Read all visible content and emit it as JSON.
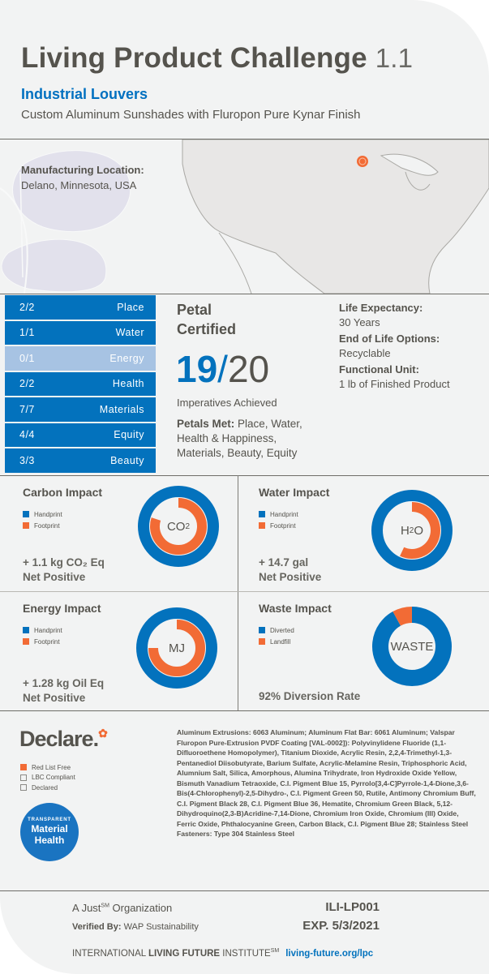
{
  "header": {
    "title": "Living Product Challenge",
    "version": "1.1",
    "product_name": "Industrial Louvers",
    "product_description": "Custom Aluminum Sunshades with Fluropon Pure Kynar Finish"
  },
  "location": {
    "label": "Manufacturing Location:",
    "value": "Delano, Minnesota, USA",
    "marker_color": "#f26b35"
  },
  "petals": [
    {
      "score": "2/2",
      "name": "Place",
      "achieved": true
    },
    {
      "score": "1/1",
      "name": "Water",
      "achieved": true
    },
    {
      "score": "0/1",
      "name": "Energy",
      "achieved": false
    },
    {
      "score": "2/2",
      "name": "Health",
      "achieved": true
    },
    {
      "score": "7/7",
      "name": "Materials",
      "achieved": true
    },
    {
      "score": "4/4",
      "name": "Equity",
      "achieved": true
    },
    {
      "score": "3/3",
      "name": "Beauty",
      "achieved": true
    }
  ],
  "certification": {
    "title": "Petal Certified",
    "achieved": "19",
    "slash": "/",
    "total": "20",
    "achieved_label": "Imperatives Achieved",
    "petals_met_label": "Petals Met:",
    "petals_met_value": " Place, Water, Health & Happiness, Materials, Beauty, Equity"
  },
  "product_info": {
    "life_expectancy_label": "Life Expectancy:",
    "life_expectancy_value": "30 Years",
    "end_of_life_label": "End of Life Options:",
    "end_of_life_value": "Recyclable",
    "functional_unit_label": "Functional Unit:",
    "functional_unit_value": "1 lb of Finished Product"
  },
  "colors": {
    "blue": "#0372bd",
    "light_blue": "#a7c3e3",
    "orange": "#f26b35",
    "text": "#55534d"
  },
  "chart_data": [
    {
      "type": "pie",
      "title": "Carbon Impact",
      "center_label": "CO",
      "center_sub": "2",
      "legend": [
        "Handprint",
        "Footprint"
      ],
      "series": [
        {
          "name": "Handprint",
          "value": 1.0
        },
        {
          "name": "Footprint",
          "value": 0.8
        }
      ],
      "result_line1": "+ 1.1 kg CO₂ Eq",
      "result_line2": "Net Positive"
    },
    {
      "type": "pie",
      "title": "Water Impact",
      "center_label": "H",
      "center_sub": "2",
      "center_suffix": "O",
      "legend": [
        "Handprint",
        "Footprint"
      ],
      "series": [
        {
          "name": "Handprint",
          "value": 1.0
        },
        {
          "name": "Footprint",
          "value": 0.57
        }
      ],
      "result_line1": "+ 14.7 gal",
      "result_line2": "Net Positive"
    },
    {
      "type": "pie",
      "title": "Energy Impact",
      "center_label": "MJ",
      "legend": [
        "Handprint",
        "Footprint"
      ],
      "series": [
        {
          "name": "Handprint",
          "value": 1.0
        },
        {
          "name": "Footprint",
          "value": 0.75
        }
      ],
      "result_line1": "+ 1.28 kg Oil Eq",
      "result_line2": "Net Positive"
    },
    {
      "type": "pie",
      "title": "Waste Impact",
      "center_label": "WASTE",
      "legend": [
        "Diverted",
        "Landfill"
      ],
      "series": [
        {
          "name": "Diverted",
          "value": 92
        },
        {
          "name": "Landfill",
          "value": 8
        }
      ],
      "result_line1": "92% Diversion Rate"
    }
  ],
  "declare": {
    "logo_text": "Declare.",
    "options": [
      {
        "label": "Red List Free",
        "checked": true
      },
      {
        "label": "LBC Compliant",
        "checked": false
      },
      {
        "label": "Declared",
        "checked": false
      }
    ],
    "badge_line1": "TRANSPARENT",
    "badge_line2": "Material",
    "badge_line3": "Health"
  },
  "ingredients": "Aluminum Extrusions: 6063 Aluminum; Aluminum Flat Bar: 6061 Aluminum; Valspar Fluropon Pure-Extrusion PVDF Coating [VAL-0002]): Polyvinylidene Fluoride (1,1-Difluoroethene Homopolymer), Titanium Dioxide, Acrylic Resin, 2,2,4-Trimethyl-1,3-Pentanediol Diisobutyrate, Barium Sulfate, Acrylic-Melamine Resin, Triphosphoric Acid, Alumnium Salt, Silica, Amorphous, Alumina Trihydrate, Iron Hydroxide Oxide Yellow, Bismuth Vanadium Tetraoxide, C.I. Pigment Blue 15, Pyrrolo[3,4-C]Pyrrole-1,4-Dione,3,6-Bis(4-Chlorophenyl)-2,5-Dihydro-, C.I. Pigment Green 50, Rutile, Antimony Chromium Buff, C.I. Pigment Black 28, C.I. Pigment Blue 36, Hematite, Chromium Green Black, 5,12-Dihydroquino(2,3-B)Acridine-7,14-Dione, Chromium Iron Oxide, Chromium (III) Oxide, Ferric Oxide, Phthalocyanine Green, Carbon Black, C.I. Pigment Blue 28; Stainless Steel Fasteners: Type 304 Stainless Steel",
  "footer": {
    "org_prefix": "A Just",
    "org_sup": "SM",
    "org_suffix": " Organization",
    "verified_label": "Verified By:",
    "verified_value": " WAP Sustainability",
    "code": "ILI-LP001",
    "expiration": "EXP. 5/3/2021",
    "ilfi_part1": "INTERNATIONAL ",
    "ilfi_part2": "LIVING FUTURE",
    "ilfi_part3": " INSTITUTE",
    "ilfi_sup": "SM",
    "link": "living-future.org/lpc"
  }
}
